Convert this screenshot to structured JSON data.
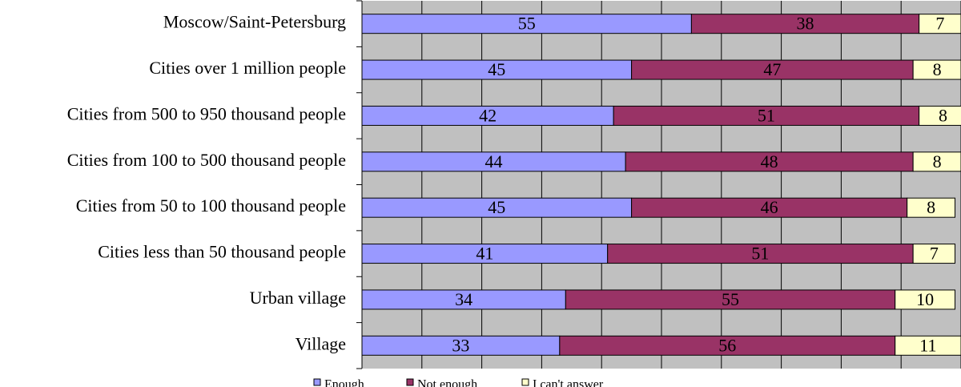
{
  "chart_data": {
    "type": "stacked-bar-horizontal",
    "categories": [
      "Moscow/Saint-Petersburg",
      "Cities over 1 million people",
      "Cities from 500 to 950 thousand people",
      "Cities from 100 to 500 thousand people",
      "Cities from 50 to 100 thousand people",
      "Cities less than 50 thousand people",
      "Urban village",
      "Village"
    ],
    "series": [
      {
        "name": "Enough",
        "color": "#9999ff",
        "values": [
          55,
          45,
          42,
          44,
          45,
          41,
          34,
          33
        ]
      },
      {
        "name": "Not enough",
        "color": "#993366",
        "values": [
          38,
          47,
          51,
          48,
          46,
          51,
          55,
          56
        ]
      },
      {
        "name": "I can't answer",
        "color": "#ffffcc",
        "values": [
          7,
          8,
          8,
          8,
          8,
          7,
          10,
          11
        ]
      }
    ],
    "xlim": [
      0,
      100
    ],
    "xticks": [
      0,
      10,
      20,
      30,
      40,
      50,
      60,
      70,
      80,
      90,
      100
    ],
    "grid": true,
    "legend": "bottom"
  }
}
